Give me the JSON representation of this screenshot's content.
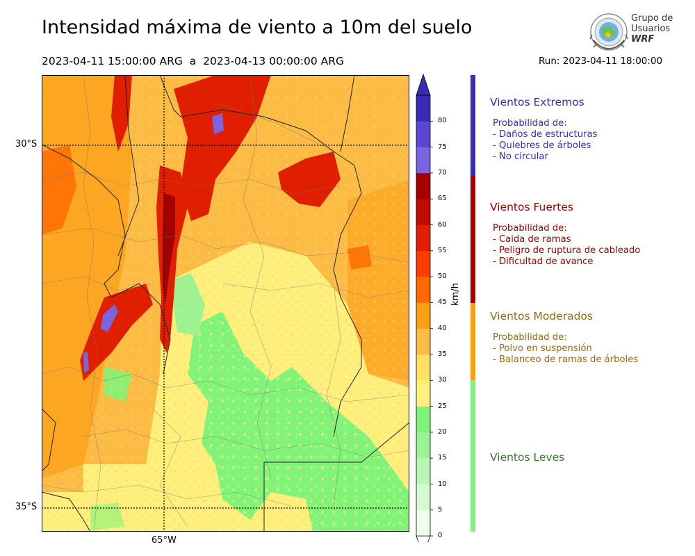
{
  "header": {
    "title": "Intensidad máxima de viento a 10m del suelo",
    "period": "2023-04-11 15:00:00 ARG  a  2023-04-13 00:00:00 ARG",
    "run": "Run: 2023-04-11 18:00:00"
  },
  "logo": {
    "line1": "Grupo de",
    "line2": "Usuarios",
    "line3": "WRF"
  },
  "map": {
    "lat_labels": [
      "30°S",
      "35°S"
    ],
    "lon_labels": [
      "65°W"
    ]
  },
  "colorbar": {
    "unit": "km/h",
    "ticks": [
      "0",
      "5",
      "10",
      "15",
      "20",
      "25",
      "30",
      "35",
      "40",
      "45",
      "50",
      "55",
      "60",
      "65",
      "70",
      "75",
      "80"
    ],
    "colors": [
      "#eefced",
      "#d4fad2",
      "#b8f6b3",
      "#9cf394",
      "#7ef57a",
      "#fff07e",
      "#fde064",
      "#fcbb44",
      "#fd9f16",
      "#ff6a00",
      "#ff3d00",
      "#e01f00",
      "#c20a00",
      "#a50000",
      "#7a65de",
      "#5a46cf",
      "#3b2ab4"
    ]
  },
  "categories": [
    {
      "title": "Vientos Extremos",
      "color": "#3a2bb5",
      "lines": [
        "Probabilidad de:",
        "- Daños de estructuras",
        "- Quiebres de árboles",
        "- No circular"
      ]
    },
    {
      "title": "Vientos Fuertes",
      "color": "#a40000",
      "lines": [
        "Probabilidad de:",
        "- Caida de ramas",
        "- Peligro de ruptura de cableado",
        "- Dificultad de avance"
      ]
    },
    {
      "title": "Vientos Moderados",
      "color": "#9a6a14",
      "bar_color": "#ff9f00",
      "lines": [
        "Probabilidad de:",
        "- Polvo en suspensión",
        "- Balanceo de ramas de árboles"
      ]
    },
    {
      "title": "Vientos Leves",
      "color": "#3b7a32",
      "bar_color": "#7ef57a",
      "lines": []
    }
  ]
}
